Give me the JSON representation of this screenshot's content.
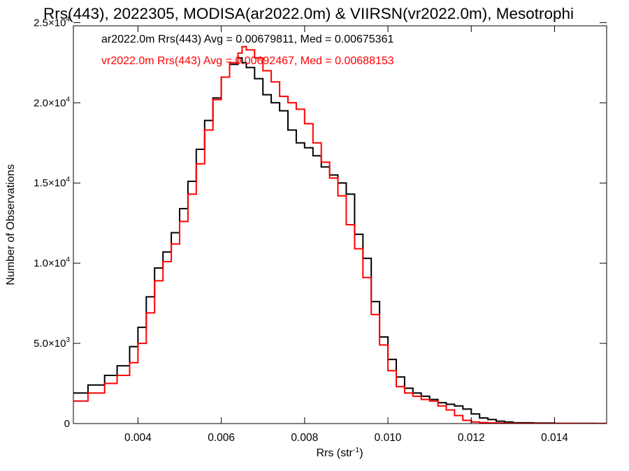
{
  "chart_data": {
    "type": "line",
    "title": "Rrs(443), 2022305, MODISA(ar2022.0m) & VIIRSN(vr2022.0m), Mesotrophi",
    "xlabel_base": "Rrs (str",
    "xlabel_sup": "-1",
    "xlabel_end": ")",
    "ylabel": "Number of Observations",
    "xlim": [
      0.00245,
      0.01525
    ],
    "ylim": [
      0,
      24800
    ],
    "x_ticks": [
      {
        "value": 0.004,
        "label": "0.004"
      },
      {
        "value": 0.006,
        "label": "0.006"
      },
      {
        "value": 0.008,
        "label": "0.008"
      },
      {
        "value": 0.01,
        "label": "0.010"
      },
      {
        "value": 0.012,
        "label": "0.012"
      },
      {
        "value": 0.014,
        "label": "0.014"
      }
    ],
    "y_ticks": [
      {
        "value": 0,
        "mant": "0",
        "exp": ""
      },
      {
        "value": 5000,
        "mant": "5.0×10",
        "exp": "3"
      },
      {
        "value": 10000,
        "mant": "1.0×10",
        "exp": "4"
      },
      {
        "value": 15000,
        "mant": "1.5×10",
        "exp": "4"
      },
      {
        "value": 20000,
        "mant": "2.0×10",
        "exp": "4"
      },
      {
        "value": 25000,
        "mant": "2.5×10",
        "exp": "4"
      }
    ],
    "grid": false,
    "legend": "top-left",
    "series": [
      {
        "name": "ar2022.0m Rrs(443) Avg = 0.00679811, Med = 0.00675361",
        "color": "#000000",
        "x": [
          0.00245,
          0.0028,
          0.0032,
          0.0035,
          0.0038,
          0.004,
          0.0042,
          0.0044,
          0.0046,
          0.0048,
          0.005,
          0.0052,
          0.0054,
          0.0056,
          0.0058,
          0.006,
          0.0062,
          0.0064,
          0.0065,
          0.0066,
          0.0068,
          0.007,
          0.0072,
          0.0074,
          0.0076,
          0.0078,
          0.008,
          0.0082,
          0.0084,
          0.0086,
          0.0088,
          0.009,
          0.0092,
          0.0094,
          0.0096,
          0.0098,
          0.01,
          0.0102,
          0.0104,
          0.0106,
          0.0108,
          0.011,
          0.0112,
          0.0114,
          0.0116,
          0.0118,
          0.012,
          0.0122,
          0.0124,
          0.0126,
          0.0128,
          0.013,
          0.0135,
          0.014,
          0.0145,
          0.015,
          0.01525
        ],
        "y": [
          1900,
          2400,
          3000,
          3600,
          4800,
          6000,
          7900,
          9700,
          10700,
          11900,
          13400,
          15100,
          17100,
          18900,
          20300,
          21600,
          22400,
          22800,
          22500,
          22200,
          21500,
          20500,
          20000,
          19500,
          18300,
          17500,
          17200,
          16700,
          16000,
          15500,
          15000,
          14300,
          11800,
          10300,
          7600,
          5400,
          4000,
          2900,
          2200,
          1900,
          1700,
          1500,
          1300,
          1200,
          1100,
          900,
          600,
          350,
          250,
          150,
          100,
          50,
          30,
          15,
          8,
          5,
          5
        ]
      },
      {
        "name": "vr2022.0m Rrs(443) Avg = 0.00692467, Med = 0.00688153",
        "color": "#ff0000",
        "x": [
          0.00245,
          0.0028,
          0.0032,
          0.0035,
          0.0038,
          0.004,
          0.0042,
          0.0044,
          0.0046,
          0.0048,
          0.005,
          0.0052,
          0.0054,
          0.0056,
          0.0058,
          0.006,
          0.0062,
          0.0064,
          0.0065,
          0.0066,
          0.0068,
          0.007,
          0.0072,
          0.0074,
          0.0076,
          0.0078,
          0.008,
          0.0082,
          0.0084,
          0.0086,
          0.0088,
          0.009,
          0.0092,
          0.0094,
          0.0096,
          0.0098,
          0.01,
          0.0102,
          0.0104,
          0.0106,
          0.0108,
          0.011,
          0.0112,
          0.0114,
          0.0116,
          0.0118,
          0.012,
          0.0122,
          0.0124,
          0.0126,
          0.0128,
          0.013,
          0.0135,
          0.014,
          0.0145,
          0.015,
          0.01525
        ],
        "y": [
          1400,
          1900,
          2500,
          3000,
          3800,
          5000,
          6900,
          8900,
          10100,
          11200,
          12600,
          14300,
          16200,
          18300,
          20200,
          21600,
          22500,
          23100,
          23500,
          23300,
          22800,
          22000,
          21300,
          20400,
          20000,
          19600,
          18700,
          17500,
          16300,
          15300,
          14200,
          12400,
          10900,
          9100,
          6800,
          4900,
          3300,
          2300,
          1900,
          1700,
          1500,
          1400,
          1100,
          850,
          500,
          200,
          100,
          60,
          40,
          30,
          20,
          15,
          10,
          8,
          5,
          5,
          5
        ]
      }
    ]
  }
}
